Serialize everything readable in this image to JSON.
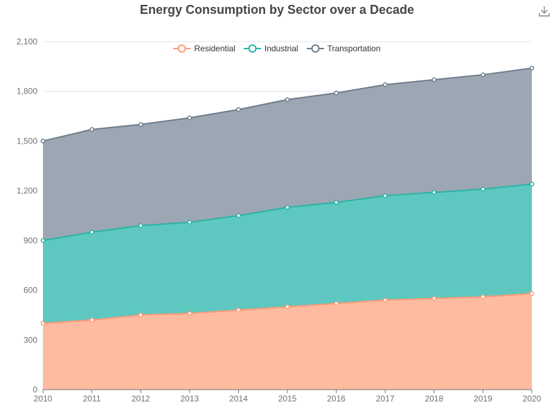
{
  "title": "Energy Consumption by Sector over a Decade",
  "toolbar": {
    "download_icon": "download-icon"
  },
  "chart_data": {
    "type": "area",
    "stacked": true,
    "title": "Energy Consumption by Sector over a Decade",
    "xlabel": "",
    "ylabel": "",
    "x": [
      "2010",
      "2011",
      "2012",
      "2013",
      "2014",
      "2015",
      "2016",
      "2017",
      "2018",
      "2019",
      "2020"
    ],
    "ylim": [
      0,
      2100
    ],
    "yticks": [
      "0",
      "300",
      "600",
      "900",
      "1,200",
      "1,500",
      "1,800",
      "2,100"
    ],
    "yticks_values": [
      0,
      300,
      600,
      900,
      1200,
      1500,
      1800,
      2100
    ],
    "grid": true,
    "legend_position": "top-center",
    "series": [
      {
        "name": "Residential",
        "color": "#ff9a76",
        "fill": "#ffbba0",
        "values": [
          400,
          420,
          450,
          460,
          480,
          500,
          520,
          540,
          550,
          560,
          580
        ]
      },
      {
        "name": "Industrial",
        "color": "#2ab3a6",
        "fill": "#5ec8c0",
        "values": [
          500,
          530,
          540,
          550,
          570,
          600,
          610,
          630,
          640,
          650,
          660
        ]
      },
      {
        "name": "Transportation",
        "color": "#6e7d8c",
        "fill": "#9ca7b3",
        "values": [
          600,
          620,
          610,
          630,
          640,
          650,
          660,
          670,
          680,
          690,
          700
        ]
      }
    ]
  }
}
